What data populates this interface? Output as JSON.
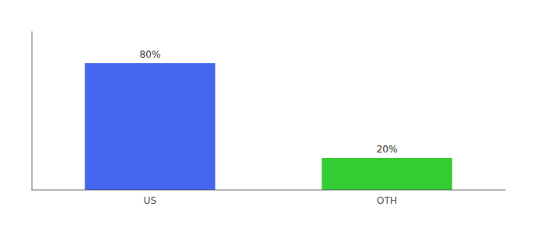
{
  "chart_data": {
    "type": "bar",
    "categories": [
      "US",
      "OTH"
    ],
    "values": [
      80,
      20
    ],
    "value_labels": [
      "80%",
      "20%"
    ],
    "data_labels": true,
    "colors": [
      "#4466ee",
      "#33cc33"
    ],
    "ylim": [
      0,
      100
    ],
    "grid": false,
    "tick_labels": "x"
  }
}
